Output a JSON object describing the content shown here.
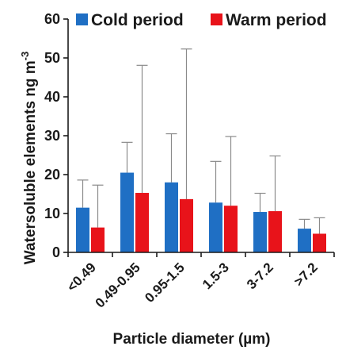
{
  "chart_data": {
    "type": "bar",
    "categories": [
      "<0.49",
      "0.49-0.95",
      "0.95-1.5",
      "1.5-3",
      "3-7.2",
      ">7.2"
    ],
    "series": [
      {
        "name": "Cold period",
        "color": "#1f6fc4",
        "values": [
          11.5,
          20.5,
          18,
          12.8,
          10.4,
          6.1
        ],
        "error_upper": [
          18.6,
          28.3,
          30.5,
          23.4,
          15.2,
          8.5
        ]
      },
      {
        "name": "Warm period",
        "color": "#e8131a",
        "values": [
          6.4,
          15.3,
          13.7,
          12,
          10.6,
          4.8
        ],
        "error_upper": [
          17.3,
          48.1,
          52.3,
          29.8,
          24.8,
          8.9
        ]
      }
    ],
    "xlabel": "Particle diameter (µm)",
    "ylabel": "Watersoluble elements ng m",
    "ylabel_superscript": "-3",
    "ylim": [
      0,
      60
    ],
    "yticks": [
      0,
      10,
      20,
      30,
      40,
      50,
      60
    ],
    "grid": false,
    "legend_position": "top"
  }
}
